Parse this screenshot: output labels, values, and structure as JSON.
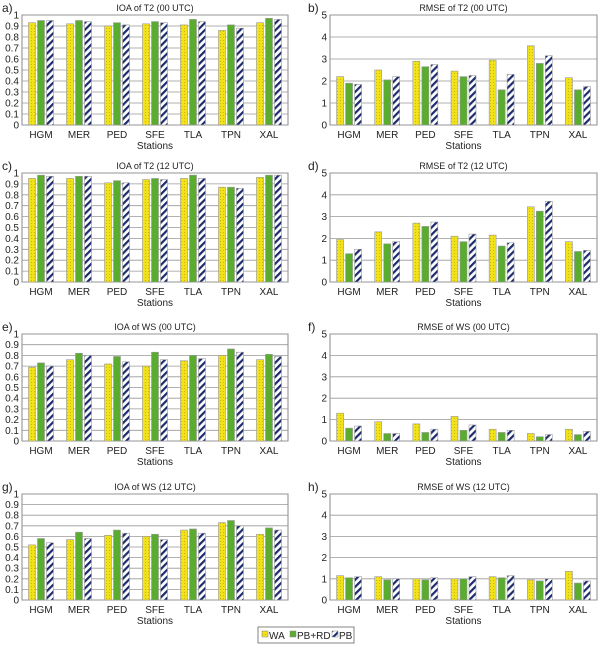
{
  "legend": {
    "position": "bottom-center",
    "entries": [
      "WA",
      "PB+RD",
      "PB"
    ]
  },
  "colors": {
    "WA": "#f2e21a",
    "PB+RD": "#5aac2e",
    "PB": "#1c2a6e"
  },
  "chart_data": [
    {
      "panel": "a)",
      "type": "bar",
      "title": "IOA of T2 (00 UTC)",
      "xlabel": "Stations",
      "ylabel": "",
      "ylim": [
        0,
        1
      ],
      "yticks": [
        "0",
        "0.1",
        "0.2",
        "0.3",
        "0.4",
        "0.5",
        "0.6",
        "0.7",
        "0.8",
        "0.9",
        "1"
      ],
      "grid": true,
      "categories": [
        "HGM",
        "MER",
        "PED",
        "SFE",
        "TLA",
        "TPN",
        "XAL"
      ],
      "series": [
        {
          "name": "WA",
          "values": [
            0.93,
            0.92,
            0.9,
            0.92,
            0.91,
            0.86,
            0.93
          ]
        },
        {
          "name": "PB+RD",
          "values": [
            0.95,
            0.95,
            0.93,
            0.94,
            0.96,
            0.91,
            0.97
          ]
        },
        {
          "name": "PB",
          "values": [
            0.95,
            0.94,
            0.91,
            0.93,
            0.94,
            0.88,
            0.96
          ]
        }
      ]
    },
    {
      "panel": "b)",
      "type": "bar",
      "title": "RMSE of T2 (00 UTC)",
      "xlabel": "Stations",
      "ylabel": "",
      "ylim": [
        0,
        5
      ],
      "yticks": [
        "0",
        "1",
        "2",
        "3",
        "4",
        "5"
      ],
      "grid": true,
      "categories": [
        "HGM",
        "MER",
        "PED",
        "SFE",
        "TLA",
        "TPN",
        "XAL"
      ],
      "series": [
        {
          "name": "WA",
          "values": [
            2.2,
            2.5,
            2.9,
            2.45,
            2.95,
            3.6,
            2.15
          ]
        },
        {
          "name": "PB+RD",
          "values": [
            1.9,
            2.05,
            2.65,
            2.2,
            1.6,
            2.8,
            1.6
          ]
        },
        {
          "name": "PB",
          "values": [
            1.85,
            2.2,
            2.75,
            2.25,
            2.3,
            3.15,
            1.75
          ]
        }
      ]
    },
    {
      "panel": "c)",
      "type": "bar",
      "title": "IOA of T2 (12 UTC)",
      "xlabel": "Stations",
      "ylabel": "",
      "ylim": [
        0,
        1
      ],
      "yticks": [
        "0",
        "0.1",
        "0.2",
        "0.3",
        "0.4",
        "0.5",
        "0.6",
        "0.7",
        "0.8",
        "0.9",
        "1"
      ],
      "grid": true,
      "categories": [
        "HGM",
        "MER",
        "PED",
        "SFE",
        "TLA",
        "TPN",
        "XAL"
      ],
      "series": [
        {
          "name": "WA",
          "values": [
            0.95,
            0.95,
            0.91,
            0.94,
            0.95,
            0.87,
            0.96
          ]
        },
        {
          "name": "PB+RD",
          "values": [
            0.98,
            0.97,
            0.93,
            0.95,
            0.98,
            0.87,
            0.98
          ]
        },
        {
          "name": "PB",
          "values": [
            0.97,
            0.97,
            0.91,
            0.94,
            0.95,
            0.86,
            0.98
          ]
        }
      ]
    },
    {
      "panel": "d)",
      "type": "bar",
      "title": "RMSE of T2 (12 UTC)",
      "xlabel": "Stations",
      "ylabel": "",
      "ylim": [
        0,
        5
      ],
      "yticks": [
        "0",
        "1",
        "2",
        "3",
        "4",
        "5"
      ],
      "grid": true,
      "categories": [
        "HGM",
        "MER",
        "PED",
        "SFE",
        "TLA",
        "TPN",
        "XAL"
      ],
      "series": [
        {
          "name": "WA",
          "values": [
            1.95,
            2.3,
            2.7,
            2.1,
            2.15,
            3.45,
            1.85
          ]
        },
        {
          "name": "PB+RD",
          "values": [
            1.3,
            1.75,
            2.55,
            1.85,
            1.65,
            3.25,
            1.4
          ]
        },
        {
          "name": "PB",
          "values": [
            1.5,
            1.85,
            2.75,
            2.2,
            1.8,
            3.7,
            1.45
          ]
        }
      ]
    },
    {
      "panel": "e)",
      "type": "bar",
      "title": "IOA of WS (00 UTC)",
      "xlabel": "Stations",
      "ylabel": "",
      "ylim": [
        0,
        1
      ],
      "yticks": [
        "0",
        "0.1",
        "0.2",
        "0.3",
        "0.4",
        "0.5",
        "0.6",
        "0.7",
        "0.8",
        "0.9",
        "1"
      ],
      "grid": true,
      "categories": [
        "HGM",
        "MER",
        "PED",
        "SFE",
        "TLA",
        "TPN",
        "XAL"
      ],
      "series": [
        {
          "name": "WA",
          "values": [
            0.69,
            0.76,
            0.72,
            0.7,
            0.75,
            0.8,
            0.76
          ]
        },
        {
          "name": "PB+RD",
          "values": [
            0.73,
            0.82,
            0.79,
            0.83,
            0.8,
            0.86,
            0.81
          ]
        },
        {
          "name": "PB",
          "values": [
            0.7,
            0.8,
            0.74,
            0.76,
            0.77,
            0.83,
            0.79
          ]
        }
      ]
    },
    {
      "panel": "f)",
      "type": "bar",
      "title": "RMSE of WS (00 UTC)",
      "xlabel": "Stations",
      "ylabel": "",
      "ylim": [
        0,
        5
      ],
      "yticks": [
        "0",
        "1",
        "2",
        "3",
        "4",
        "5"
      ],
      "grid": true,
      "categories": [
        "HGM",
        "MER",
        "PED",
        "SFE",
        "TLA",
        "TPN",
        "XAL"
      ],
      "series": [
        {
          "name": "WA",
          "values": [
            1.3,
            0.9,
            0.8,
            1.15,
            0.55,
            0.35,
            0.55
          ]
        },
        {
          "name": "PB+RD",
          "values": [
            0.6,
            0.35,
            0.4,
            0.5,
            0.4,
            0.2,
            0.3
          ]
        },
        {
          "name": "PB",
          "values": [
            0.7,
            0.35,
            0.55,
            0.75,
            0.5,
            0.3,
            0.45
          ]
        }
      ]
    },
    {
      "panel": "g)",
      "type": "bar",
      "title": "IOA of WS (12 UTC)",
      "xlabel": "Stations",
      "ylabel": "",
      "ylim": [
        0,
        1
      ],
      "yticks": [
        "0",
        "0.1",
        "0.2",
        "0.3",
        "0.4",
        "0.5",
        "0.6",
        "0.7",
        "0.8",
        "0.9",
        "1"
      ],
      "grid": true,
      "categories": [
        "HGM",
        "MER",
        "PED",
        "SFE",
        "TLA",
        "TPN",
        "XAL"
      ],
      "series": [
        {
          "name": "WA",
          "values": [
            0.52,
            0.57,
            0.61,
            0.6,
            0.66,
            0.73,
            0.62
          ]
        },
        {
          "name": "PB+RD",
          "values": [
            0.58,
            0.64,
            0.66,
            0.62,
            0.67,
            0.75,
            0.68
          ]
        },
        {
          "name": "PB",
          "values": [
            0.54,
            0.58,
            0.63,
            0.57,
            0.63,
            0.7,
            0.66
          ]
        }
      ]
    },
    {
      "panel": "h)",
      "type": "bar",
      "title": "RMSE of WS (12 UTC)",
      "xlabel": "Stations",
      "ylabel": "",
      "ylim": [
        0,
        5
      ],
      "yticks": [
        "0",
        "1",
        "2",
        "3",
        "4",
        "5"
      ],
      "grid": true,
      "categories": [
        "HGM",
        "MER",
        "PED",
        "SFE",
        "TLA",
        "TPN",
        "XAL"
      ],
      "series": [
        {
          "name": "WA",
          "values": [
            1.15,
            1.1,
            1.0,
            1.0,
            1.1,
            0.95,
            1.35
          ]
        },
        {
          "name": "PB+RD",
          "values": [
            1.05,
            0.95,
            0.95,
            1.0,
            1.05,
            0.9,
            0.8
          ]
        },
        {
          "name": "PB",
          "values": [
            1.1,
            1.0,
            1.05,
            1.1,
            1.15,
            1.0,
            0.9
          ]
        }
      ]
    }
  ]
}
